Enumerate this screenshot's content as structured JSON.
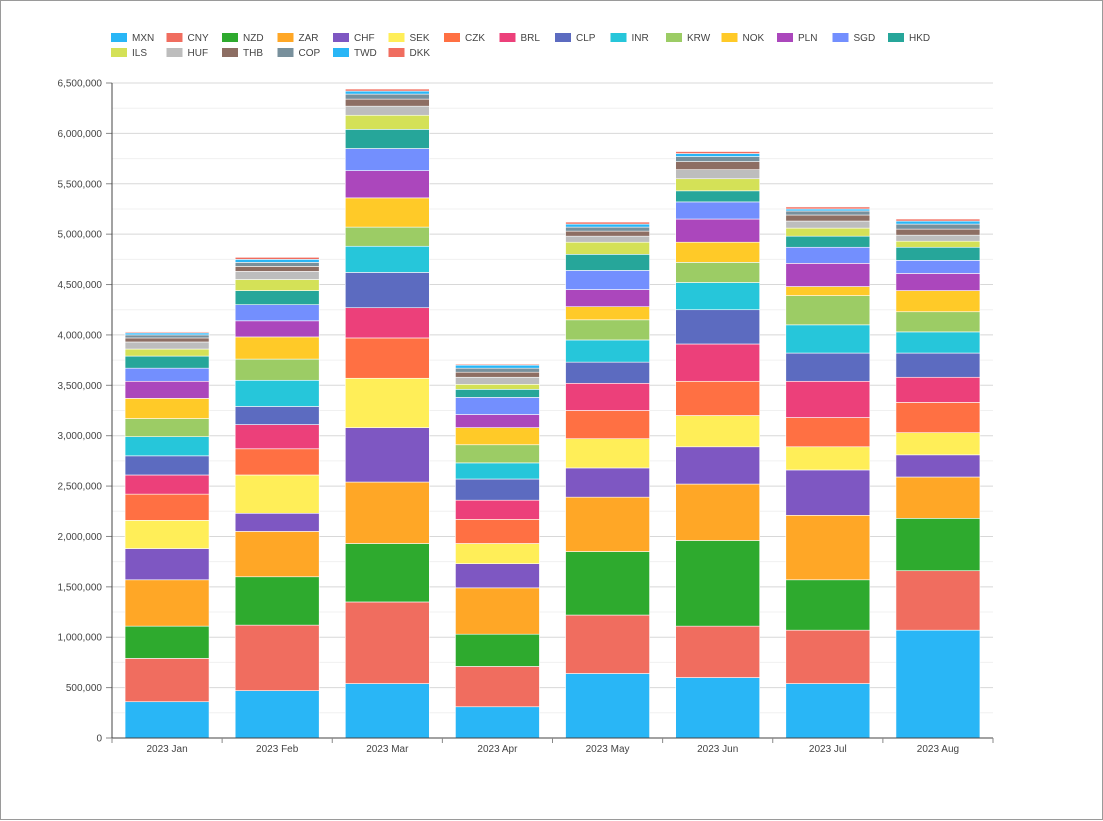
{
  "chart_data": {
    "type": "bar",
    "stacked": true,
    "title": "",
    "xlabel": "",
    "ylabel": "",
    "ylim": [
      0,
      6500000
    ],
    "y_tick_step": 500000,
    "y_tick_labels": [
      "0",
      "500,000",
      "1,000,000",
      "1,500,000",
      "2,000,000",
      "2,500,000",
      "3,000,000",
      "3,500,000",
      "4,000,000",
      "4,500,000",
      "5,000,000",
      "5,500,000",
      "6,000,000",
      "6,500,000"
    ],
    "grid": true,
    "legend_position": "top-left",
    "categories": [
      "2023 Jan",
      "2023 Feb",
      "2023 Mar",
      "2023 Apr",
      "2023 May",
      "2023 Jun",
      "2023 Jul",
      "2023 Aug"
    ],
    "series": [
      {
        "name": "MXN",
        "color": "#29b6f6",
        "values": [
          360000,
          470000,
          540000,
          310000,
          640000,
          600000,
          540000,
          1070000
        ]
      },
      {
        "name": "CNY",
        "color": "#f06d5f",
        "values": [
          430000,
          650000,
          810000,
          400000,
          580000,
          510000,
          530000,
          590000
        ]
      },
      {
        "name": "NZD",
        "color": "#2eaa2e",
        "values": [
          320000,
          480000,
          580000,
          320000,
          630000,
          850000,
          500000,
          520000
        ]
      },
      {
        "name": "ZAR",
        "color": "#ffa726",
        "values": [
          460000,
          450000,
          610000,
          460000,
          540000,
          560000,
          640000,
          410000
        ]
      },
      {
        "name": "CHF",
        "color": "#7e57c2",
        "values": [
          310000,
          180000,
          540000,
          240000,
          290000,
          370000,
          450000,
          220000
        ]
      },
      {
        "name": "SEK",
        "color": "#ffee58",
        "values": [
          280000,
          380000,
          490000,
          200000,
          290000,
          310000,
          230000,
          220000
        ]
      },
      {
        "name": "CZK",
        "color": "#ff7043",
        "values": [
          260000,
          260000,
          400000,
          240000,
          280000,
          340000,
          290000,
          300000
        ]
      },
      {
        "name": "BRL",
        "color": "#ec407a",
        "values": [
          190000,
          240000,
          300000,
          190000,
          270000,
          370000,
          360000,
          250000
        ]
      },
      {
        "name": "CLP",
        "color": "#5c6bc0",
        "values": [
          190000,
          180000,
          350000,
          210000,
          210000,
          340000,
          280000,
          240000
        ]
      },
      {
        "name": "INR",
        "color": "#26c6da",
        "values": [
          190000,
          260000,
          260000,
          160000,
          220000,
          270000,
          280000,
          210000
        ]
      },
      {
        "name": "KRW",
        "color": "#9ccc65",
        "values": [
          180000,
          210000,
          190000,
          180000,
          200000,
          200000,
          290000,
          200000
        ]
      },
      {
        "name": "NOK",
        "color": "#ffca28",
        "values": [
          200000,
          220000,
          290000,
          170000,
          130000,
          200000,
          90000,
          210000
        ]
      },
      {
        "name": "PLN",
        "color": "#ab47bc",
        "values": [
          170000,
          160000,
          270000,
          130000,
          170000,
          230000,
          230000,
          170000
        ]
      },
      {
        "name": "SGD",
        "color": "#738ffe",
        "values": [
          130000,
          160000,
          220000,
          170000,
          190000,
          170000,
          160000,
          130000
        ]
      },
      {
        "name": "HKD",
        "color": "#26a69a",
        "values": [
          120000,
          140000,
          190000,
          80000,
          160000,
          110000,
          110000,
          130000
        ]
      },
      {
        "name": "ILS",
        "color": "#d4e157",
        "values": [
          70000,
          110000,
          140000,
          50000,
          120000,
          120000,
          80000,
          60000
        ]
      },
      {
        "name": "HUF",
        "color": "#bdbdbd",
        "values": [
          70000,
          80000,
          90000,
          70000,
          60000,
          90000,
          70000,
          60000
        ]
      },
      {
        "name": "THB",
        "color": "#8d6e63",
        "values": [
          40000,
          50000,
          70000,
          50000,
          50000,
          80000,
          60000,
          60000
        ]
      },
      {
        "name": "COP",
        "color": "#78909c",
        "values": [
          30000,
          40000,
          50000,
          40000,
          40000,
          50000,
          40000,
          50000
        ]
      },
      {
        "name": "TWD",
        "color": "#29b6f6",
        "values": [
          20000,
          30000,
          30000,
          30000,
          30000,
          30000,
          20000,
          30000
        ]
      },
      {
        "name": "DKK",
        "color": "#f06d5f",
        "values": [
          10000,
          20000,
          20000,
          10000,
          20000,
          20000,
          20000,
          20000
        ]
      }
    ]
  }
}
